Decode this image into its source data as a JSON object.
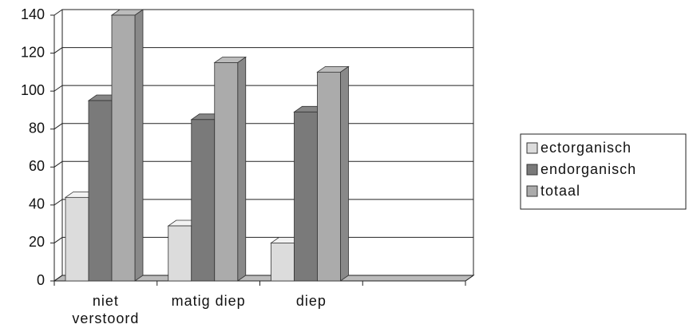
{
  "chart_data": {
    "type": "bar3d",
    "categories": [
      "niet verstoord",
      "matig diep",
      "diep",
      null
    ],
    "series": [
      {
        "name": "ectorganisch",
        "color": "#dcdcdc",
        "values": [
          44,
          29,
          20,
          null
        ]
      },
      {
        "name": "endorganisch",
        "color": "#7a7a7a",
        "values": [
          95,
          85,
          89,
          null
        ]
      },
      {
        "name": "totaal",
        "color": "#ababab",
        "values": [
          140,
          115,
          110,
          null
        ]
      }
    ],
    "ylim": [
      0,
      140
    ],
    "yticks": [
      0,
      20,
      40,
      60,
      80,
      100,
      120,
      140
    ],
    "grid": true,
    "legend": "right"
  }
}
